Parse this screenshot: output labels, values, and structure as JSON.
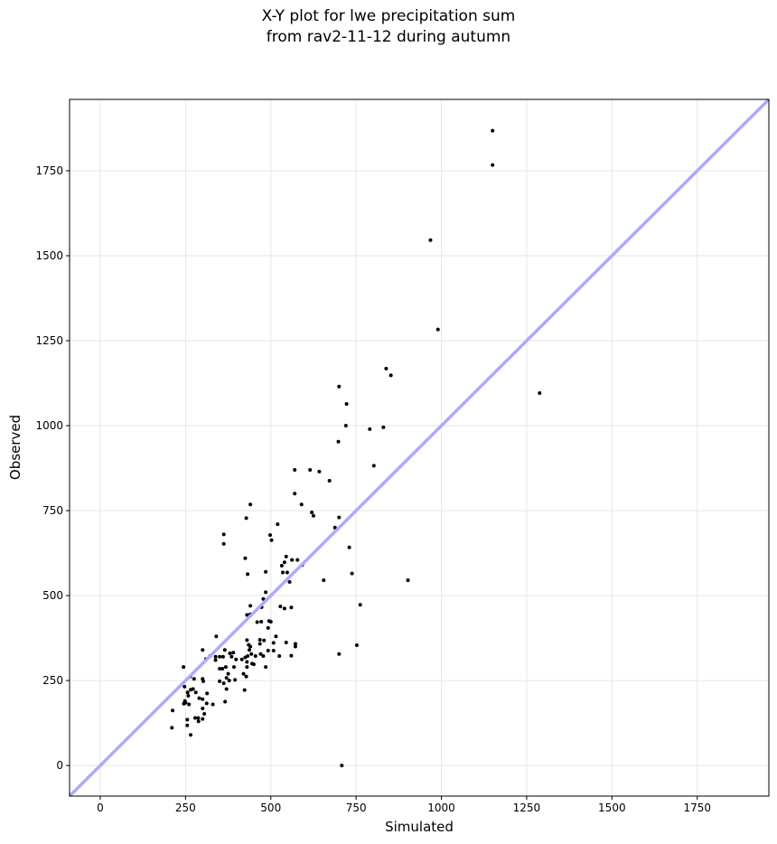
{
  "chart_data": {
    "type": "scatter",
    "title": "X-Y plot for lwe precipitation sum",
    "subtitle": "from rav2-11-12 during autumn",
    "xlabel": "Simulated",
    "ylabel": "Observed",
    "xlim": [
      -90,
      1960
    ],
    "ylim": [
      -90,
      1960
    ],
    "xticks": [
      0,
      250,
      500,
      750,
      1000,
      1250,
      1500,
      1750
    ],
    "yticks": [
      0,
      250,
      500,
      750,
      1000,
      1250,
      1500,
      1750
    ],
    "grid": true,
    "reference_line": {
      "type": "identity",
      "color": "#aaaaff"
    },
    "point_color": "#000000",
    "points": [
      [
        1150,
        1868
      ],
      [
        1150,
        1767
      ],
      [
        968,
        1546
      ],
      [
        990,
        1283
      ],
      [
        1288,
        1096
      ],
      [
        838,
        1168
      ],
      [
        852,
        1148
      ],
      [
        700,
        1115
      ],
      [
        722,
        1064
      ],
      [
        720,
        1000
      ],
      [
        790,
        990
      ],
      [
        830,
        995
      ],
      [
        698,
        953
      ],
      [
        802,
        882
      ],
      [
        570,
        870
      ],
      [
        615,
        870
      ],
      [
        642,
        865
      ],
      [
        672,
        838
      ],
      [
        620,
        745
      ],
      [
        625,
        735
      ],
      [
        570,
        800
      ],
      [
        590,
        768
      ],
      [
        440,
        768
      ],
      [
        428,
        728
      ],
      [
        700,
        730
      ],
      [
        688,
        700
      ],
      [
        730,
        642
      ],
      [
        738,
        565
      ],
      [
        655,
        545
      ],
      [
        902,
        545
      ],
      [
        762,
        473
      ],
      [
        752,
        354
      ],
      [
        700,
        328
      ],
      [
        708,
        0
      ],
      [
        362,
        680
      ],
      [
        362,
        652
      ],
      [
        520,
        710
      ],
      [
        498,
        678
      ],
      [
        502,
        663
      ],
      [
        425,
        610
      ],
      [
        545,
        615
      ],
      [
        562,
        605
      ],
      [
        578,
        605
      ],
      [
        540,
        598
      ],
      [
        532,
        588
      ],
      [
        592,
        590
      ],
      [
        555,
        540
      ],
      [
        535,
        568
      ],
      [
        548,
        568
      ],
      [
        485,
        570
      ],
      [
        432,
        563
      ],
      [
        485,
        510
      ],
      [
        478,
        490
      ],
      [
        440,
        470
      ],
      [
        473,
        466
      ],
      [
        528,
        468
      ],
      [
        540,
        462
      ],
      [
        560,
        465
      ],
      [
        495,
        425
      ],
      [
        460,
        422
      ],
      [
        472,
        423
      ],
      [
        500,
        423
      ],
      [
        430,
        443
      ],
      [
        440,
        445
      ],
      [
        340,
        380
      ],
      [
        515,
        380
      ],
      [
        492,
        405
      ],
      [
        468,
        370
      ],
      [
        480,
        368
      ],
      [
        468,
        358
      ],
      [
        508,
        361
      ],
      [
        545,
        362
      ],
      [
        572,
        358
      ],
      [
        572,
        350
      ],
      [
        430,
        369
      ],
      [
        435,
        355
      ],
      [
        440,
        350
      ],
      [
        437,
        340
      ],
      [
        443,
        328
      ],
      [
        425,
        318
      ],
      [
        432,
        322
      ],
      [
        455,
        322
      ],
      [
        470,
        328
      ],
      [
        492,
        338
      ],
      [
        478,
        322
      ],
      [
        508,
        338
      ],
      [
        525,
        322
      ],
      [
        560,
        323
      ],
      [
        300,
        340
      ],
      [
        322,
        322
      ],
      [
        310,
        313
      ],
      [
        338,
        320
      ],
      [
        350,
        320
      ],
      [
        360,
        320
      ],
      [
        380,
        330
      ],
      [
        365,
        340
      ],
      [
        390,
        332
      ],
      [
        385,
        320
      ],
      [
        398,
        312
      ],
      [
        415,
        312
      ],
      [
        430,
        305
      ],
      [
        445,
        300
      ],
      [
        450,
        298
      ],
      [
        485,
        290
      ],
      [
        430,
        290
      ],
      [
        392,
        290
      ],
      [
        368,
        290
      ],
      [
        350,
        285
      ],
      [
        358,
        285
      ],
      [
        338,
        310
      ],
      [
        244,
        290
      ],
      [
        420,
        270
      ],
      [
        428,
        262
      ],
      [
        375,
        270
      ],
      [
        370,
        258
      ],
      [
        378,
        250
      ],
      [
        395,
        252
      ],
      [
        350,
        248
      ],
      [
        362,
        242
      ],
      [
        300,
        255
      ],
      [
        302,
        248
      ],
      [
        264,
        262
      ],
      [
        275,
        255
      ],
      [
        370,
        225
      ],
      [
        423,
        222
      ],
      [
        247,
        232
      ],
      [
        256,
        215
      ],
      [
        265,
        223
      ],
      [
        272,
        225
      ],
      [
        258,
        205
      ],
      [
        280,
        215
      ],
      [
        290,
        198
      ],
      [
        300,
        195
      ],
      [
        313,
        212
      ],
      [
        248,
        190
      ],
      [
        250,
        185
      ],
      [
        260,
        180
      ],
      [
        245,
        182
      ],
      [
        312,
        183
      ],
      [
        330,
        180
      ],
      [
        366,
        188
      ],
      [
        300,
        168
      ],
      [
        212,
        162
      ],
      [
        305,
        152
      ],
      [
        278,
        140
      ],
      [
        287,
        140
      ],
      [
        300,
        137
      ],
      [
        255,
        135
      ],
      [
        288,
        130
      ],
      [
        255,
        118
      ],
      [
        210,
        111
      ],
      [
        265,
        90
      ]
    ]
  }
}
